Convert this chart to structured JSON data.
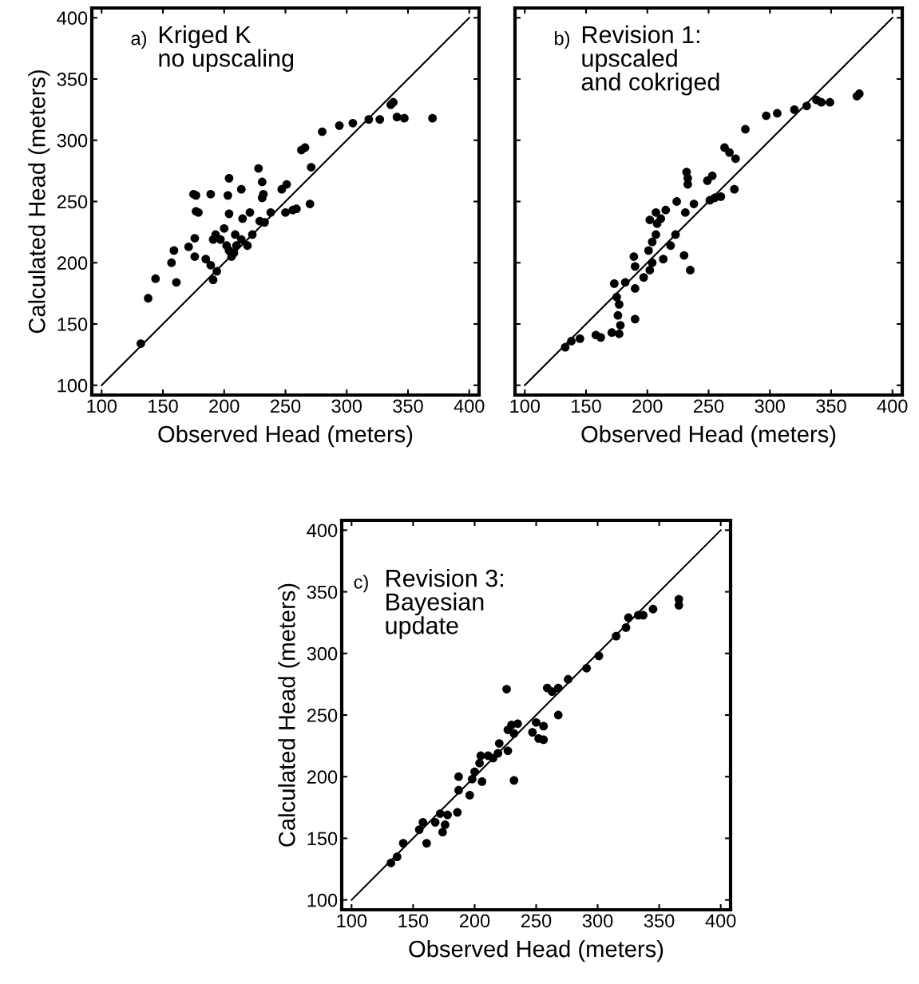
{
  "chart_data": [
    {
      "type": "scatter",
      "xlabel": "Observed Head (meters)",
      "ylabel": "Calculated Head (meters)",
      "annotations": [
        "a)",
        "Kriged K\nno upscaling"
      ],
      "xlim": [
        92,
        408
      ],
      "ylim": [
        92,
        408
      ],
      "xticks": [
        100,
        150,
        200,
        250,
        300,
        350,
        400
      ],
      "yticks": [
        100,
        150,
        200,
        250,
        300,
        350,
        400
      ],
      "series": [
        {
          "marker": "circle",
          "color": "#000000",
          "x": [
            132,
            138,
            144,
            161,
            157,
            159,
            171,
            176,
            175,
            177,
            177,
            179,
            189,
            176,
            185,
            189,
            191,
            194,
            191,
            193,
            197,
            200,
            202,
            204,
            206,
            208,
            210,
            209,
            214,
            219,
            223,
            215,
            204,
            203,
            204,
            214,
            221,
            229,
            233,
            238,
            231,
            232,
            231,
            228,
            247,
            251,
            250,
            256,
            259,
            270,
            271,
            263,
            266,
            280,
            294,
            305,
            318,
            327,
            336,
            338,
            341,
            347,
            370
          ],
          "values": [
            134,
            171,
            187,
            184,
            200,
            210,
            213,
            220,
            256,
            255,
            242,
            241,
            256,
            205,
            203,
            198,
            186,
            193,
            219,
            223,
            219,
            228,
            214,
            210,
            205,
            208,
            214,
            223,
            219,
            214,
            223,
            236,
            240,
            255,
            269,
            260,
            241,
            234,
            233,
            241,
            253,
            256,
            266,
            277,
            260,
            264,
            241,
            243,
            244,
            248,
            278,
            292,
            294,
            307,
            312,
            314,
            317,
            317,
            329,
            331,
            319,
            318,
            318
          ]
        },
        {
          "type": "line",
          "color": "#000000",
          "x": [
            100,
            400
          ],
          "values": [
            100,
            400
          ]
        }
      ]
    },
    {
      "type": "scatter",
      "xlabel": "Observed Head (meters)",
      "ylabel": null,
      "annotations": [
        "b)",
        "Revision 1:\nupscaled\nand cokriged"
      ],
      "xlim": [
        92,
        408
      ],
      "ylim": [
        92,
        408
      ],
      "xticks": [
        100,
        150,
        200,
        250,
        300,
        350,
        400
      ],
      "yticks": [
        100,
        150,
        200,
        250,
        300,
        350,
        400
      ],
      "tick_labels": "x",
      "series": [
        {
          "marker": "circle",
          "color": "#000000",
          "x": [
            133,
            138,
            145,
            158,
            162,
            171,
            177,
            178,
            176,
            177,
            175,
            190,
            173,
            182,
            190,
            197,
            202,
            204,
            189,
            190,
            201,
            204,
            207,
            208,
            211,
            213,
            219,
            223,
            202,
            207,
            215,
            230,
            235,
            224,
            231,
            238,
            251,
            255,
            260,
            271,
            232,
            233,
            233,
            249,
            253,
            263,
            267,
            272,
            280,
            297,
            306,
            320,
            330,
            338,
            342,
            349,
            371,
            373
          ],
          "values": [
            131,
            136,
            138,
            141,
            139,
            143,
            142,
            149,
            157,
            166,
            172,
            154,
            183,
            184,
            179,
            188,
            194,
            200,
            205,
            197,
            210,
            217,
            223,
            232,
            236,
            203,
            214,
            223,
            235,
            241,
            243,
            206,
            194,
            250,
            241,
            248,
            251,
            253,
            254,
            260,
            274,
            269,
            264,
            267,
            271,
            294,
            290,
            285,
            309,
            320,
            322,
            325,
            328,
            333,
            331,
            331,
            336,
            338
          ]
        },
        {
          "type": "line",
          "color": "#000000",
          "x": [
            100,
            400
          ],
          "values": [
            100,
            400
          ]
        }
      ]
    },
    {
      "type": "scatter",
      "xlabel": "Observed Head (meters)",
      "ylabel": "Calculated Head (meters)",
      "annotations": [
        "c)",
        "Revision 3:\nBayesian\nupdate"
      ],
      "xlim": [
        92,
        408
      ],
      "ylim": [
        92,
        408
      ],
      "xticks": [
        100,
        150,
        200,
        250,
        300,
        350,
        400
      ],
      "yticks": [
        100,
        150,
        200,
        250,
        300,
        350,
        400
      ],
      "series": [
        {
          "marker": "circle",
          "color": "#000000",
          "x": [
            132,
            137,
            142,
            155,
            158,
            161,
            174,
            168,
            176,
            172,
            178,
            186,
            187,
            187,
            196,
            198,
            200,
            204,
            206,
            205,
            211,
            215,
            219,
            220,
            227,
            226,
            232,
            227,
            230,
            235,
            232,
            247,
            250,
            252,
            256,
            256,
            268,
            259,
            263,
            268,
            276,
            291,
            301,
            315,
            323,
            325,
            333,
            337,
            345,
            366,
            366
          ],
          "values": [
            130,
            135,
            146,
            157,
            163,
            146,
            155,
            163,
            161,
            170,
            169,
            171,
            189,
            200,
            185,
            198,
            204,
            211,
            196,
            217,
            217,
            215,
            219,
            227,
            221,
            271,
            197,
            238,
            242,
            243,
            235,
            236,
            244,
            231,
            230,
            241,
            250,
            272,
            269,
            272,
            279,
            288,
            298,
            314,
            321,
            329,
            331,
            331,
            336,
            344,
            339
          ]
        },
        {
          "type": "line",
          "color": "#000000",
          "x": [
            100,
            400
          ],
          "values": [
            100,
            400
          ]
        }
      ]
    }
  ]
}
